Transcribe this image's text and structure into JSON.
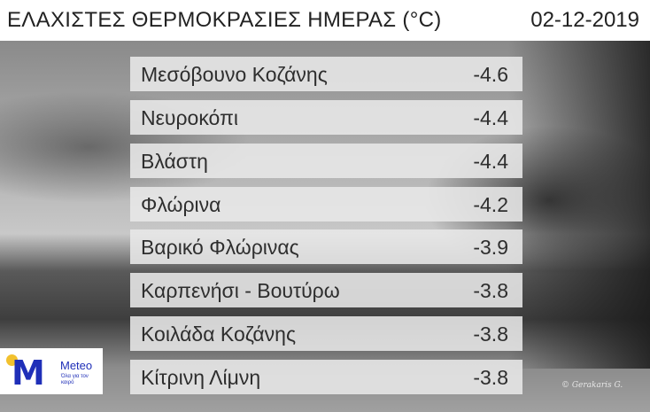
{
  "header": {
    "title": "ΕΛΑΧΙΣΤΕΣ ΘΕΡΜΟΚΡΑΣΙΕΣ ΗΜΕΡΑΣ (°C)",
    "date": "02-12-2019"
  },
  "rows": [
    {
      "name": "Μεσόβουνο Κοζάνης",
      "value": "-4.6"
    },
    {
      "name": "Νευροκόπι",
      "value": "-4.4"
    },
    {
      "name": "Βλάστη",
      "value": "-4.4"
    },
    {
      "name": "Φλώρινα",
      "value": "-4.2"
    },
    {
      "name": "Βαρικό Φλώρινας",
      "value": "-3.9"
    },
    {
      "name": "Καρπενήσι - Βουτύρω",
      "value": "-3.8"
    },
    {
      "name": "Κοιλάδα Κοζάνης",
      "value": "-3.8"
    },
    {
      "name": "Κίτρινη Λίμνη",
      "value": "-3.8"
    }
  ],
  "logo": {
    "letter": "M",
    "brand": "Meteo",
    "slogan": "Όλα για τον καιρό",
    "colors": {
      "primary": "#1f2fb8",
      "sun": "#f2c12e"
    }
  },
  "credit": "© Gerakaris G."
}
